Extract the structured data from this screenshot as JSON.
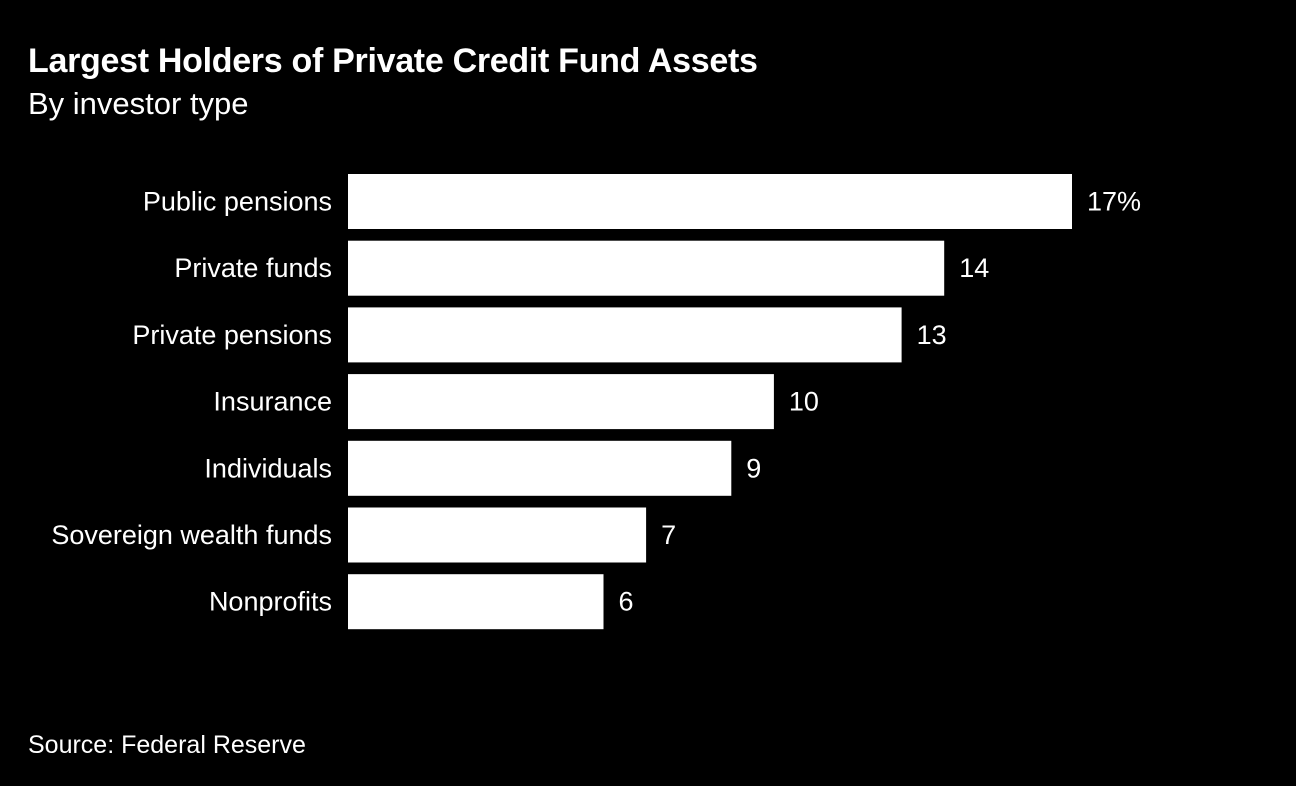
{
  "title": "Largest Holders of Private Credit Fund Assets",
  "subtitle": "By investor type",
  "source": "Source: Federal Reserve",
  "colors": {
    "background": "#000000",
    "bar": "#ffffff",
    "text": "#ffffff"
  },
  "chart_data": {
    "type": "bar",
    "orientation": "horizontal",
    "title": "Largest Holders of Private Credit Fund Assets",
    "subtitle": "By investor type",
    "xlabel": "",
    "ylabel": "",
    "unit": "%",
    "categories": [
      "Public pensions",
      "Private funds",
      "Private pensions",
      "Insurance",
      "Individuals",
      "Sovereign wealth funds",
      "Nonprofits"
    ],
    "values": [
      17,
      14,
      13,
      10,
      9,
      7,
      6
    ],
    "value_labels": [
      "17%",
      "14",
      "13",
      "10",
      "9",
      "7",
      "6"
    ],
    "xlim": [
      0,
      17
    ],
    "grid": false,
    "legend": "none"
  }
}
